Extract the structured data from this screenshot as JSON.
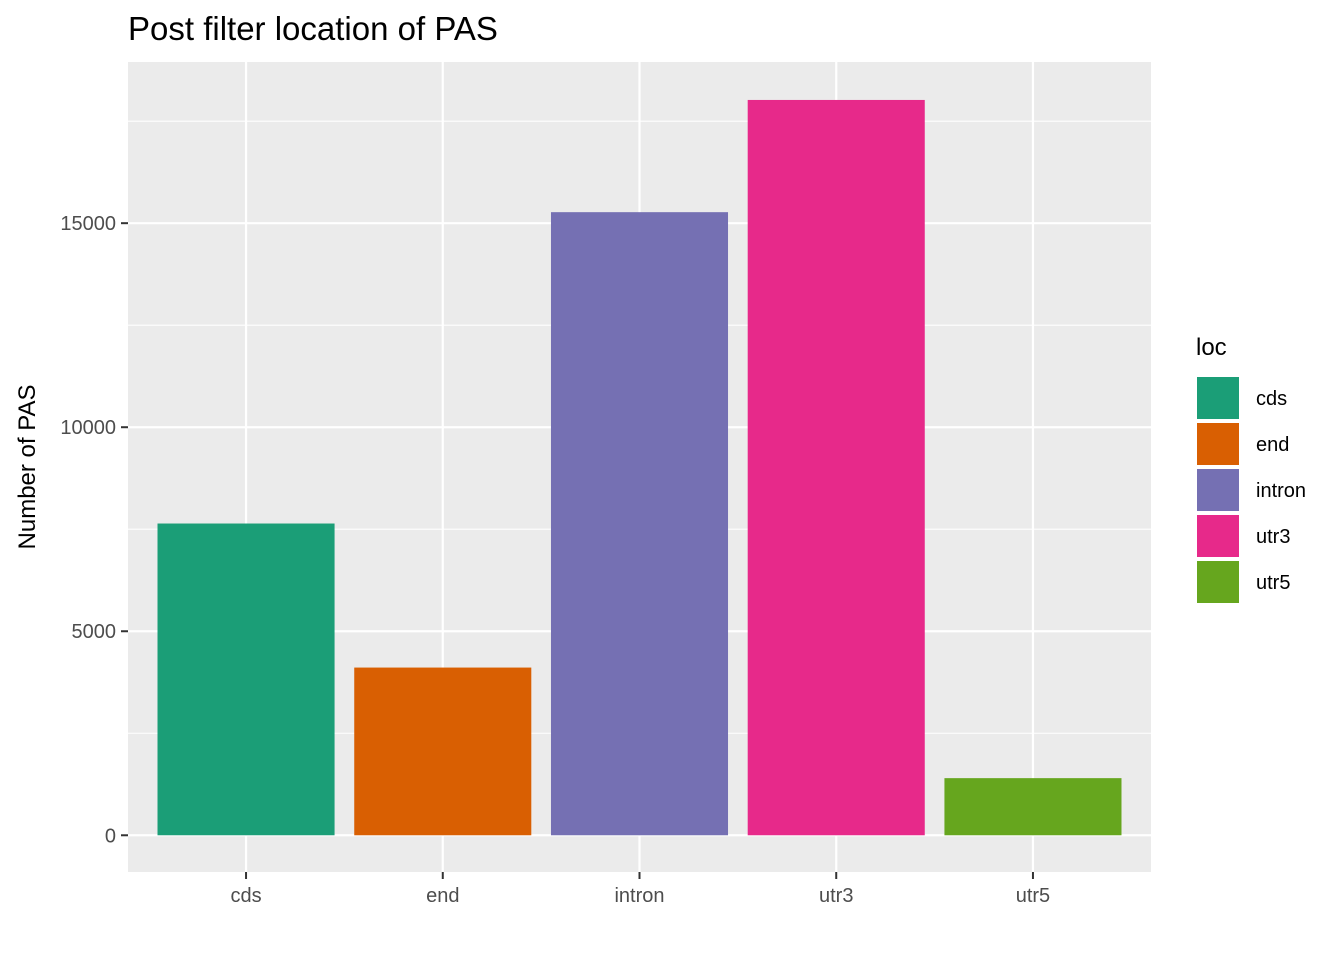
{
  "chart_data": {
    "type": "bar",
    "title": "Post filter location of PAS",
    "xlabel": "",
    "ylabel": "Number of PAS",
    "categories": [
      "cds",
      "end",
      "intron",
      "utr3",
      "utr5"
    ],
    "values": [
      7640,
      4110,
      15270,
      18020,
      1400
    ],
    "colors": [
      "#1B9E77",
      "#D95F02",
      "#7570B3",
      "#E7298A",
      "#66A61E"
    ],
    "ylim": [
      -900,
      18950
    ],
    "yticks": [
      0,
      5000,
      10000,
      15000
    ],
    "ytick_labels": [
      "0",
      "5000",
      "10000",
      "15000"
    ],
    "grid": true,
    "panel_background": "#EBEBEB",
    "legend": {
      "title": "loc",
      "position": "right",
      "entries": [
        "cds",
        "end",
        "intron",
        "utr3",
        "utr5"
      ]
    }
  }
}
